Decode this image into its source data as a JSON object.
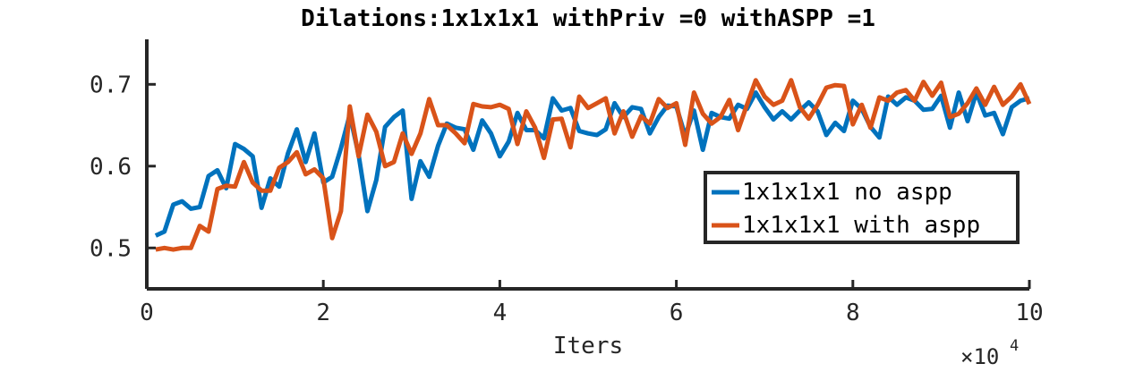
{
  "chart_data": {
    "type": "line",
    "title": "Dilations:1x1x1x1 withPriv =0 withASPP =1",
    "xlabel": "Iters",
    "ylabel": "",
    "x_exponent_label": "×10",
    "x_exponent_power": "4",
    "xlim": [
      0,
      100000
    ],
    "ylim": [
      0.45,
      0.755
    ],
    "xticks": [
      0,
      20000,
      40000,
      60000,
      80000,
      100000
    ],
    "xtick_labels": [
      "0",
      "2",
      "4",
      "6",
      "8",
      "10"
    ],
    "yticks": [
      0.5,
      0.6,
      0.7
    ],
    "ytick_labels": [
      "0.5",
      "0.6",
      "0.7"
    ],
    "grid": false,
    "legend_position": "right-center",
    "x": [
      1000,
      2000,
      3000,
      4000,
      5000,
      6000,
      7000,
      8000,
      9000,
      10000,
      11000,
      12000,
      13000,
      14000,
      15000,
      16000,
      17000,
      18000,
      19000,
      20000,
      21000,
      22000,
      23000,
      24000,
      25000,
      26000,
      27000,
      28000,
      29000,
      30000,
      31000,
      32000,
      33000,
      34000,
      35000,
      36000,
      37000,
      38000,
      39000,
      40000,
      41000,
      42000,
      43000,
      44000,
      45000,
      46000,
      47000,
      48000,
      49000,
      50000,
      51000,
      52000,
      53000,
      54000,
      55000,
      56000,
      57000,
      58000,
      59000,
      60000,
      61000,
      62000,
      63000,
      64000,
      65000,
      66000,
      67000,
      68000,
      69000,
      70000,
      71000,
      72000,
      73000,
      74000,
      75000,
      76000,
      77000,
      78000,
      79000,
      80000,
      81000,
      82000,
      83000,
      84000,
      85000,
      86000,
      87000,
      88000,
      89000,
      90000,
      91000,
      92000,
      93000,
      94000,
      95000,
      96000,
      97000,
      98000,
      99000,
      100000
    ],
    "series": [
      {
        "name": "1x1x1x1 no aspp",
        "color": "#0072bd",
        "values": [
          0.515,
          0.52,
          0.553,
          0.557,
          0.548,
          0.55,
          0.588,
          0.595,
          0.573,
          0.627,
          0.621,
          0.612,
          0.549,
          0.585,
          0.575,
          0.616,
          0.645,
          0.605,
          0.64,
          0.58,
          0.587,
          0.622,
          0.663,
          0.614,
          0.545,
          0.583,
          0.648,
          0.66,
          0.668,
          0.56,
          0.606,
          0.587,
          0.625,
          0.652,
          0.647,
          0.645,
          0.62,
          0.656,
          0.64,
          0.612,
          0.63,
          0.665,
          0.644,
          0.644,
          0.634,
          0.683,
          0.668,
          0.671,
          0.643,
          0.64,
          0.638,
          0.645,
          0.677,
          0.66,
          0.672,
          0.67,
          0.64,
          0.66,
          0.674,
          0.673,
          0.637,
          0.668,
          0.62,
          0.665,
          0.66,
          0.658,
          0.675,
          0.67,
          0.69,
          0.672,
          0.657,
          0.667,
          0.657,
          0.668,
          0.678,
          0.667,
          0.638,
          0.653,
          0.643,
          0.68,
          0.67,
          0.648,
          0.635,
          0.685,
          0.675,
          0.684,
          0.68,
          0.669,
          0.67,
          0.686,
          0.647,
          0.69,
          0.655,
          0.69,
          0.662,
          0.665,
          0.639,
          0.672,
          0.68,
          0.683
        ]
      },
      {
        "name": "1x1x1x1 with aspp",
        "color": "#d95319",
        "values": [
          0.498,
          0.5,
          0.498,
          0.5,
          0.5,
          0.527,
          0.52,
          0.572,
          0.576,
          0.575,
          0.605,
          0.58,
          0.57,
          0.57,
          0.598,
          0.605,
          0.617,
          0.59,
          0.596,
          0.585,
          0.512,
          0.545,
          0.673,
          0.612,
          0.663,
          0.642,
          0.6,
          0.605,
          0.64,
          0.615,
          0.64,
          0.682,
          0.65,
          0.65,
          0.64,
          0.628,
          0.676,
          0.673,
          0.672,
          0.675,
          0.67,
          0.627,
          0.667,
          0.647,
          0.61,
          0.657,
          0.658,
          0.623,
          0.685,
          0.671,
          0.677,
          0.683,
          0.64,
          0.667,
          0.636,
          0.661,
          0.652,
          0.682,
          0.671,
          0.677,
          0.626,
          0.69,
          0.664,
          0.652,
          0.66,
          0.681,
          0.644,
          0.675,
          0.705,
          0.685,
          0.675,
          0.68,
          0.705,
          0.672,
          0.658,
          0.675,
          0.696,
          0.699,
          0.698,
          0.651,
          0.675,
          0.647,
          0.684,
          0.68,
          0.69,
          0.693,
          0.68,
          0.703,
          0.686,
          0.702,
          0.66,
          0.664,
          0.677,
          0.695,
          0.675,
          0.697,
          0.675,
          0.685,
          0.7,
          0.676
        ]
      }
    ]
  }
}
